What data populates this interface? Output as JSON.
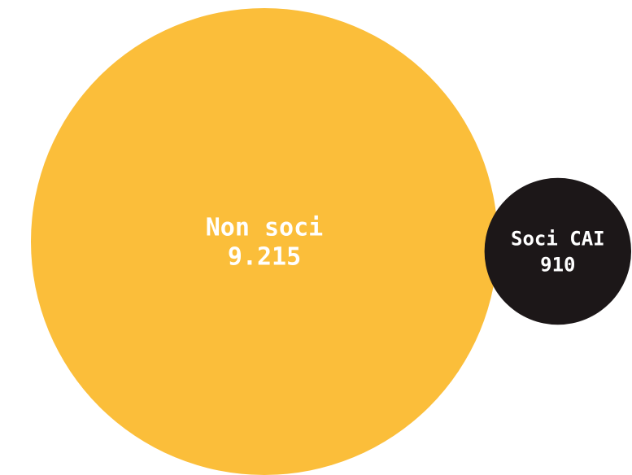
{
  "chart_data": {
    "type": "bubble",
    "title": "",
    "items": [
      {
        "label": "Non soci",
        "value_text": "9.215",
        "value": 9215,
        "color": "#FBBE3A",
        "text_color": "#FFFFFF"
      },
      {
        "label": "Soci CAI",
        "value_text": "910",
        "value": 910,
        "color": "#1C1718",
        "text_color": "#FFFFFF"
      }
    ],
    "legend": "none",
    "grid": false
  }
}
